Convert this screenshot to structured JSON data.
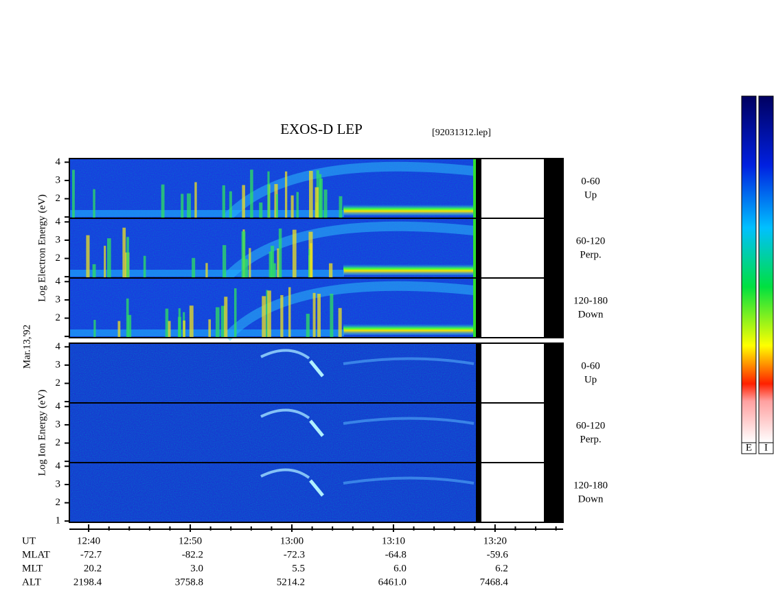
{
  "chart_data": {
    "type": "spectrogram",
    "title": "EXOS-D LEP",
    "file": "[92031312.lep]",
    "date": "Mar.13,'92",
    "xlim": [
      758.1,
      806.7
    ],
    "xticks": [
      {
        "value": 760,
        "label": "12:40"
      },
      {
        "value": 770,
        "label": "12:50"
      },
      {
        "value": 780,
        "label": "13:00"
      },
      {
        "value": 790,
        "label": "13:10"
      },
      {
        "value": 800,
        "label": "13:20"
      }
    ],
    "xminorticks": [
      762,
      764,
      766,
      768,
      772,
      774,
      776,
      778,
      782,
      784,
      786,
      788,
      792,
      794,
      796,
      798,
      802,
      804,
      806
    ],
    "ylim": [
      0.93,
      4.2
    ],
    "groups": [
      {
        "label": "Log Electron Energy (eV)",
        "panels": [
          {
            "angle": "0-60",
            "direction": "Up",
            "yticks": [
              {
                "value": 1,
                "label": null
              },
              2,
              3,
              4
            ]
          },
          {
            "angle": "60-120",
            "direction": "Perp.",
            "yticks": [
              {
                "value": 1,
                "label": null
              },
              2,
              3,
              4
            ]
          },
          {
            "angle": "120-180",
            "direction": "Down",
            "yticks": [
              {
                "value": 1,
                "label": null
              },
              2,
              3,
              4
            ]
          }
        ]
      },
      {
        "label": "Log Ion Energy (eV)",
        "panels": [
          {
            "angle": "0-60",
            "direction": "Up",
            "yticks": [
              {
                "value": 1,
                "label": null
              },
              2,
              3,
              4
            ]
          },
          {
            "angle": "60-120",
            "direction": "Perp.",
            "yticks": [
              {
                "value": 1,
                "label": null
              },
              2,
              3,
              4
            ]
          },
          {
            "angle": "120-180",
            "direction": "Down",
            "yticks": [
              1,
              2,
              3,
              4
            ]
          }
        ]
      }
    ],
    "ephemeris": {
      "header": "UT",
      "rows": [
        {
          "name": "MLAT",
          "values": [
            "-72.7",
            "-82.2",
            "-72.3",
            "-64.8",
            "-59.6"
          ]
        },
        {
          "name": "MLT",
          "values": [
            "20.2",
            "3.0",
            "5.5",
            "6.0",
            "6.2"
          ]
        },
        {
          "name": "ALT",
          "values": [
            "2198.4",
            "3758.8",
            "5214.2",
            "6461.0",
            "7468.4"
          ]
        }
      ]
    },
    "colorbars": [
      "E",
      "I"
    ]
  }
}
